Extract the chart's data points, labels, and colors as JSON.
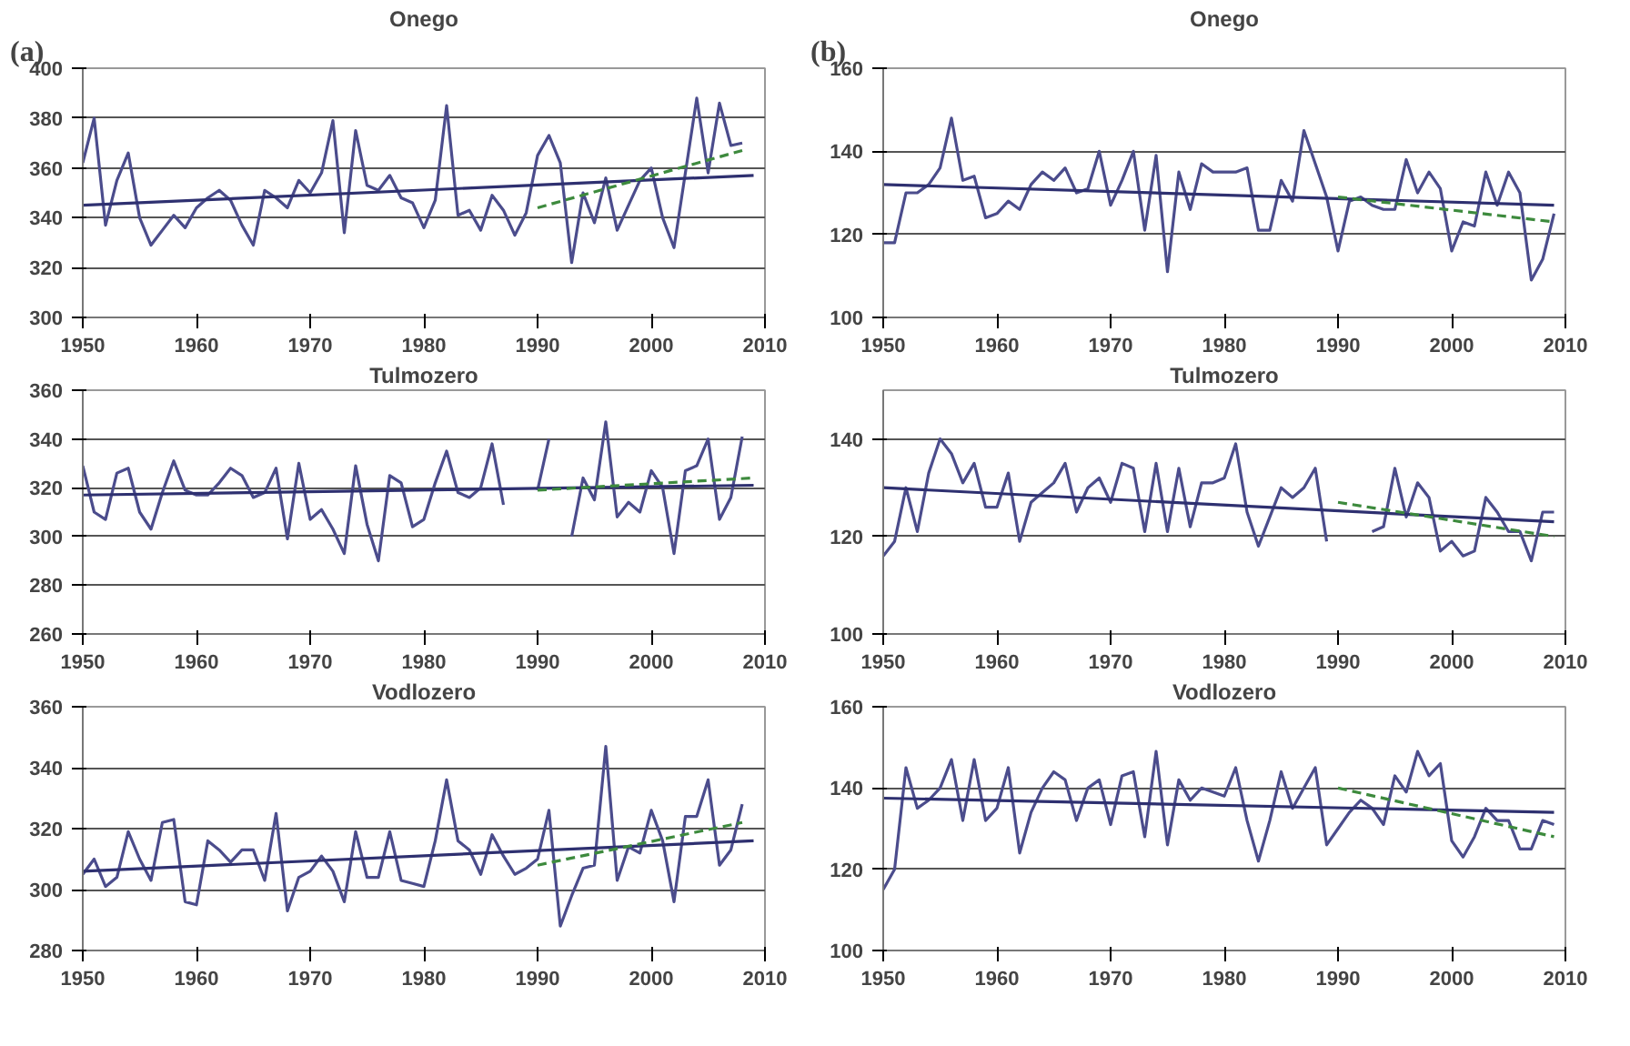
{
  "chart_data": [
    {
      "type": "line",
      "title": "Onego",
      "annotations": [
        "(a)"
      ],
      "xlim": [
        1950,
        2010
      ],
      "xticks": [
        1950,
        1960,
        1970,
        1980,
        1990,
        2000,
        2010
      ],
      "ylim": [
        300,
        400
      ],
      "yticks": [
        300,
        320,
        340,
        360,
        380,
        400
      ],
      "grid": "y",
      "marker": "none",
      "x": [
        1950,
        1951,
        1952,
        1953,
        1954,
        1955,
        1956,
        1957,
        1958,
        1959,
        1960,
        1961,
        1962,
        1963,
        1964,
        1965,
        1966,
        1967,
        1968,
        1969,
        1970,
        1971,
        1972,
        1973,
        1974,
        1975,
        1976,
        1977,
        1978,
        1979,
        1980,
        1981,
        1982,
        1983,
        1984,
        1985,
        1986,
        1987,
        1988,
        1989,
        1990,
        1991,
        1992,
        1993,
        1994,
        1995,
        1996,
        1997,
        1998,
        1999,
        2000,
        2001,
        2002,
        2003,
        2004,
        2005,
        2006,
        2007,
        2008
      ],
      "series": [
        {
          "color": "#4b4c8c",
          "line_style": "solid",
          "values": [
            362,
            380,
            337,
            355,
            366,
            340,
            329,
            335,
            341,
            336,
            344,
            348,
            351,
            347,
            337,
            329,
            351,
            348,
            344,
            355,
            350,
            358,
            379,
            334,
            375,
            353,
            351,
            357,
            348,
            346,
            336,
            347,
            385,
            341,
            343,
            335,
            349,
            343,
            333,
            342,
            365,
            373,
            362,
            322,
            350,
            338,
            356,
            335,
            345,
            355,
            360,
            340,
            328,
            358,
            388,
            358,
            386,
            369,
            370
          ]
        },
        {
          "color": "#2e3070",
          "line_style": "solid",
          "x": [
            1950,
            2009
          ],
          "values": [
            345,
            357
          ]
        },
        {
          "color": "#3d8a3d",
          "line_style": "dashed",
          "x": [
            1990,
            2008
          ],
          "values": [
            344,
            367
          ]
        }
      ]
    },
    {
      "type": "line",
      "title": "Onego",
      "annotations": [
        "(b)"
      ],
      "xlim": [
        1950,
        2010
      ],
      "xticks": [
        1950,
        1960,
        1970,
        1980,
        1990,
        2000,
        2010
      ],
      "ylim": [
        100,
        160
      ],
      "yticks": [
        100,
        120,
        140,
        160
      ],
      "grid": "y",
      "marker": "none",
      "x": [
        1950,
        1951,
        1952,
        1953,
        1954,
        1955,
        1956,
        1957,
        1958,
        1959,
        1960,
        1961,
        1962,
        1963,
        1964,
        1965,
        1966,
        1967,
        1968,
        1969,
        1970,
        1971,
        1972,
        1973,
        1974,
        1975,
        1976,
        1977,
        1978,
        1979,
        1980,
        1981,
        1982,
        1983,
        1984,
        1985,
        1986,
        1987,
        1988,
        1989,
        1990,
        1991,
        1992,
        1993,
        1994,
        1995,
        1996,
        1997,
        1998,
        1999,
        2000,
        2001,
        2002,
        2003,
        2004,
        2005,
        2006,
        2007,
        2008,
        2009
      ],
      "series": [
        {
          "color": "#4b4c8c",
          "line_style": "solid",
          "values": [
            118,
            118,
            130,
            130,
            132,
            136,
            148,
            133,
            134,
            124,
            125,
            128,
            126,
            132,
            135,
            133,
            136,
            130,
            131,
            140,
            127,
            133,
            140,
            121,
            139,
            111,
            135,
            126,
            137,
            135,
            135,
            135,
            136,
            121,
            121,
            133,
            128,
            145,
            137,
            129,
            116,
            128,
            129,
            127,
            126,
            126,
            138,
            130,
            135,
            131,
            116,
            123,
            122,
            135,
            127,
            135,
            130,
            109,
            114,
            125
          ]
        },
        {
          "color": "#2e3070",
          "line_style": "solid",
          "x": [
            1950,
            2009
          ],
          "values": [
            132,
            127
          ]
        },
        {
          "color": "#3d8a3d",
          "line_style": "dashed",
          "x": [
            1990,
            2009
          ],
          "values": [
            129,
            123
          ]
        }
      ]
    },
    {
      "type": "line",
      "title": "Tulmozero",
      "xlim": [
        1950,
        2010
      ],
      "xticks": [
        1950,
        1960,
        1970,
        1980,
        1990,
        2000,
        2010
      ],
      "ylim": [
        260,
        360
      ],
      "yticks": [
        260,
        280,
        300,
        320,
        340,
        360
      ],
      "grid": "y",
      "marker": "none",
      "x": [
        1950,
        1951,
        1952,
        1953,
        1954,
        1955,
        1956,
        1957,
        1958,
        1959,
        1960,
        1961,
        1962,
        1963,
        1964,
        1965,
        1966,
        1967,
        1968,
        1969,
        1970,
        1971,
        1972,
        1973,
        1974,
        1975,
        1976,
        1977,
        1978,
        1979,
        1980,
        1981,
        1982,
        1983,
        1984,
        1985,
        1986,
        1987,
        1988,
        1989,
        1990,
        1991,
        1992,
        1993,
        1994,
        1995,
        1996,
        1997,
        1998,
        1999,
        2000,
        2001,
        2002,
        2003,
        2004,
        2005,
        2006,
        2007,
        2008
      ],
      "series": [
        {
          "color": "#4b4c8c",
          "line_style": "solid",
          "values": [
            329,
            310,
            307,
            326,
            328,
            310,
            303,
            318,
            331,
            319,
            317,
            317,
            322,
            328,
            325,
            316,
            318,
            328,
            299,
            330,
            307,
            311,
            303,
            293,
            329,
            305,
            290,
            325,
            322,
            304,
            307,
            322,
            335,
            318,
            316,
            320,
            338,
            313,
            null,
            null,
            319,
            340,
            null,
            300,
            324,
            315,
            347,
            308,
            314,
            310,
            327,
            320,
            293,
            327,
            329,
            340,
            307,
            316,
            341
          ]
        },
        {
          "color": "#2e3070",
          "line_style": "solid",
          "x": [
            1950,
            2009
          ],
          "values": [
            317,
            321
          ]
        },
        {
          "color": "#3d8a3d",
          "line_style": "dashed",
          "x": [
            1990,
            2009
          ],
          "values": [
            319,
            324
          ]
        }
      ]
    },
    {
      "type": "line",
      "title": "Tulmozero",
      "xlim": [
        1950,
        2010
      ],
      "xticks": [
        1950,
        1960,
        1970,
        1980,
        1990,
        2000,
        2010
      ],
      "ylim": [
        100,
        150
      ],
      "yticks": [
        100,
        120,
        140
      ],
      "grid": "y",
      "marker": "none",
      "x": [
        1950,
        1951,
        1952,
        1953,
        1954,
        1955,
        1956,
        1957,
        1958,
        1959,
        1960,
        1961,
        1962,
        1963,
        1964,
        1965,
        1966,
        1967,
        1968,
        1969,
        1970,
        1971,
        1972,
        1973,
        1974,
        1975,
        1976,
        1977,
        1978,
        1979,
        1980,
        1981,
        1982,
        1983,
        1984,
        1985,
        1986,
        1987,
        1988,
        1989,
        1990,
        1991,
        1992,
        1993,
        1994,
        1995,
        1996,
        1997,
        1998,
        1999,
        2000,
        2001,
        2002,
        2003,
        2004,
        2005,
        2006,
        2007,
        2008,
        2009
      ],
      "series": [
        {
          "color": "#4b4c8c",
          "line_style": "solid",
          "values": [
            116,
            119,
            130,
            121,
            133,
            140,
            137,
            131,
            135,
            126,
            126,
            133,
            119,
            127,
            129,
            131,
            135,
            125,
            130,
            132,
            127,
            135,
            134,
            121,
            135,
            121,
            134,
            122,
            131,
            131,
            132,
            139,
            125,
            118,
            124,
            130,
            128,
            130,
            134,
            119,
            null,
            null,
            null,
            121,
            122,
            134,
            124,
            131,
            128,
            117,
            119,
            116,
            117,
            128,
            125,
            121,
            121,
            115,
            125,
            125
          ]
        },
        {
          "color": "#2e3070",
          "line_style": "solid",
          "x": [
            1950,
            2009
          ],
          "values": [
            130,
            123
          ]
        },
        {
          "color": "#3d8a3d",
          "line_style": "dashed",
          "x": [
            1990,
            2009
          ],
          "values": [
            127,
            120
          ]
        }
      ]
    },
    {
      "type": "line",
      "title": "Vodlozero",
      "xlim": [
        1950,
        2010
      ],
      "xticks": [
        1950,
        1960,
        1970,
        1980,
        1990,
        2000,
        2010
      ],
      "ylim": [
        280,
        360
      ],
      "yticks": [
        280,
        300,
        320,
        340,
        360
      ],
      "grid": "y",
      "marker": "none",
      "x": [
        1950,
        1951,
        1952,
        1953,
        1954,
        1955,
        1956,
        1957,
        1958,
        1959,
        1960,
        1961,
        1962,
        1963,
        1964,
        1965,
        1966,
        1967,
        1968,
        1969,
        1970,
        1971,
        1972,
        1973,
        1974,
        1975,
        1976,
        1977,
        1978,
        1979,
        1980,
        1981,
        1982,
        1983,
        1984,
        1985,
        1986,
        1987,
        1988,
        1989,
        1990,
        1991,
        1992,
        1993,
        1994,
        1995,
        1996,
        1997,
        1998,
        1999,
        2000,
        2001,
        2002,
        2003,
        2004,
        2005,
        2006,
        2007,
        2008
      ],
      "series": [
        {
          "color": "#4b4c8c",
          "line_style": "solid",
          "values": [
            305,
            310,
            301,
            304,
            319,
            310,
            303,
            322,
            323,
            296,
            295,
            316,
            313,
            309,
            313,
            313,
            303,
            325,
            293,
            304,
            306,
            311,
            306,
            296,
            319,
            304,
            304,
            319,
            303,
            302,
            301,
            316,
            336,
            316,
            313,
            305,
            318,
            311,
            305,
            307,
            310,
            326,
            288,
            298,
            307,
            308,
            347,
            303,
            314,
            312,
            326,
            316,
            296,
            324,
            324,
            336,
            308,
            313,
            328
          ]
        },
        {
          "color": "#2e3070",
          "line_style": "solid",
          "x": [
            1950,
            2009
          ],
          "values": [
            306,
            316
          ]
        },
        {
          "color": "#3d8a3d",
          "line_style": "dashed",
          "x": [
            1990,
            2008
          ],
          "values": [
            308,
            322
          ]
        }
      ]
    },
    {
      "type": "line",
      "title": "Vodlozero",
      "xlim": [
        1950,
        2010
      ],
      "xticks": [
        1950,
        1960,
        1970,
        1980,
        1990,
        2000,
        2010
      ],
      "ylim": [
        100,
        160
      ],
      "yticks": [
        100,
        120,
        140,
        160
      ],
      "grid": "y",
      "marker": "none",
      "x": [
        1950,
        1951,
        1952,
        1953,
        1954,
        1955,
        1956,
        1957,
        1958,
        1959,
        1960,
        1961,
        1962,
        1963,
        1964,
        1965,
        1966,
        1967,
        1968,
        1969,
        1970,
        1971,
        1972,
        1973,
        1974,
        1975,
        1976,
        1977,
        1978,
        1979,
        1980,
        1981,
        1982,
        1983,
        1984,
        1985,
        1986,
        1987,
        1988,
        1989,
        1990,
        1991,
        1992,
        1993,
        1994,
        1995,
        1996,
        1997,
        1998,
        1999,
        2000,
        2001,
        2002,
        2003,
        2004,
        2005,
        2006,
        2007,
        2008,
        2009
      ],
      "series": [
        {
          "color": "#4b4c8c",
          "line_style": "solid",
          "values": [
            115,
            120,
            145,
            135,
            137,
            140,
            147,
            132,
            147,
            132,
            135,
            145,
            124,
            134,
            140,
            144,
            142,
            132,
            140,
            142,
            131,
            143,
            144,
            128,
            149,
            126,
            142,
            137,
            140,
            139,
            138,
            145,
            132,
            122,
            132,
            144,
            135,
            140,
            145,
            126,
            130,
            134,
            137,
            135,
            131,
            143,
            139,
            149,
            143,
            146,
            127,
            123,
            128,
            135,
            132,
            132,
            125,
            125,
            132,
            131
          ]
        },
        {
          "color": "#2e3070",
          "line_style": "solid",
          "x": [
            1950,
            2009
          ],
          "values": [
            137.5,
            134
          ]
        },
        {
          "color": "#3d8a3d",
          "line_style": "dashed",
          "x": [
            1990,
            2009
          ],
          "values": [
            140,
            128
          ]
        }
      ]
    }
  ]
}
